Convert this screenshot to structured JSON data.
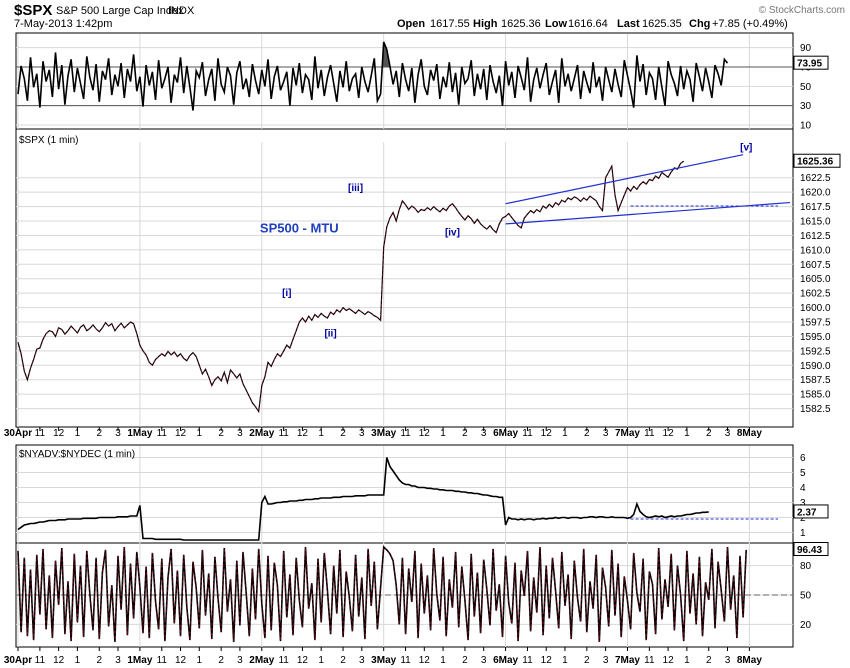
{
  "header": {
    "symbol": "$SPX",
    "name": "S&P 500 Large Cap Index",
    "exchange": "INDX",
    "date": "7-May-2013 1:42pm",
    "watermark": "© StockCharts.com",
    "open_label": "Open",
    "open": "1617.55",
    "high_label": "High",
    "high": "1625.36",
    "low_label": "Low",
    "low": "1616.64",
    "last_label": "Last",
    "last": "1625.35",
    "chg_label": "Chg",
    "chg": "+7.85 (+0.49%)"
  },
  "x_axis": {
    "labels": [
      {
        "t": "30Apr",
        "i": 0,
        "day": true
      },
      {
        "t": "11",
        "i": 7
      },
      {
        "t": "12",
        "i": 13
      },
      {
        "t": "1",
        "i": 19
      },
      {
        "t": "2",
        "i": 26
      },
      {
        "t": "3",
        "i": 32
      },
      {
        "t": "1May",
        "i": 39,
        "day": true
      },
      {
        "t": "11",
        "i": 46
      },
      {
        "t": "12",
        "i": 52
      },
      {
        "t": "1",
        "i": 58
      },
      {
        "t": "2",
        "i": 65
      },
      {
        "t": "3",
        "i": 71
      },
      {
        "t": "2May",
        "i": 78,
        "day": true
      },
      {
        "t": "11",
        "i": 85
      },
      {
        "t": "12",
        "i": 91
      },
      {
        "t": "1",
        "i": 97
      },
      {
        "t": "2",
        "i": 104
      },
      {
        "t": "3",
        "i": 110
      },
      {
        "t": "3May",
        "i": 117,
        "day": true
      },
      {
        "t": "11",
        "i": 124
      },
      {
        "t": "12",
        "i": 130
      },
      {
        "t": "1",
        "i": 136
      },
      {
        "t": "2",
        "i": 143
      },
      {
        "t": "3",
        "i": 149
      },
      {
        "t": "6May",
        "i": 156,
        "day": true
      },
      {
        "t": "11",
        "i": 163
      },
      {
        "t": "12",
        "i": 169
      },
      {
        "t": "1",
        "i": 175
      },
      {
        "t": "2",
        "i": 182
      },
      {
        "t": "3",
        "i": 188
      },
      {
        "t": "7May",
        "i": 195,
        "day": true
      },
      {
        "t": "11",
        "i": 202
      },
      {
        "t": "12",
        "i": 208
      },
      {
        "t": "1",
        "i": 214
      },
      {
        "t": "2",
        "i": 221
      },
      {
        "t": "3",
        "i": 227
      },
      {
        "t": "8May",
        "i": 234,
        "day": true
      }
    ]
  },
  "chart_data": [
    {
      "type": "line",
      "pane": "indicator-top",
      "ylim": [
        10,
        100
      ],
      "y_ticks": [
        10,
        30,
        50,
        70,
        90
      ],
      "last_value": "73.95",
      "values": [
        42,
        71,
        58,
        35,
        80,
        49,
        63,
        28,
        76,
        55,
        67,
        39,
        85,
        47,
        72,
        31,
        61,
        78,
        44,
        69,
        53,
        37,
        81,
        59,
        46,
        73,
        34,
        66,
        57,
        79,
        41,
        62,
        50,
        74,
        38,
        68,
        55,
        83,
        45,
        60,
        29,
        72,
        51,
        65,
        36,
        77,
        48,
        58,
        70,
        33,
        62,
        54,
        80,
        43,
        71,
        49,
        25,
        66,
        59,
        75,
        40,
        57,
        68,
        35,
        79,
        52,
        44,
        70,
        61,
        31,
        64,
        76,
        47,
        58,
        39,
        73,
        56,
        42,
        67,
        50,
        78,
        37,
        60,
        71,
        46,
        55,
        65,
        30,
        69,
        51,
        74,
        43,
        62,
        57,
        36,
        81,
        48,
        67,
        40,
        59,
        72,
        53,
        34,
        66,
        49,
        76,
        45,
        58,
        63,
        38,
        70,
        55,
        44,
        61,
        79,
        35,
        42,
        96,
        88,
        71,
        52,
        66,
        39,
        74,
        57,
        45,
        69,
        33,
        62,
        78,
        50,
        41,
        67,
        56,
        73,
        37,
        60,
        49,
        75,
        44,
        64,
        31,
        70,
        53,
        58,
        77,
        40,
        63,
        47,
        68,
        36,
        72,
        55,
        43,
        61,
        30,
        76,
        51,
        65,
        38,
        71,
        59,
        46,
        80,
        34,
        57,
        69,
        48,
        62,
        74,
        41,
        55,
        67,
        33,
        79,
        50,
        63,
        45,
        58,
        72,
        37,
        66,
        54,
        43,
        75,
        49,
        60,
        35,
        70,
        57,
        44,
        68,
        52,
        39,
        77,
        61,
        46,
        28,
        82,
        55,
        73,
        41,
        64,
        58,
        36,
        70,
        49,
        30,
        76,
        62,
        53,
        40,
        71,
        47,
        66,
        57,
        34,
        74,
        60,
        45,
        69,
        55,
        38,
        72,
        63,
        51,
        78,
        74
      ]
    },
    {
      "type": "line",
      "pane": "price",
      "title": "$SPX (1 min)",
      "ylim": [
        1580,
        1628
      ],
      "y_ticks": [
        1582.5,
        1585,
        1587.5,
        1590,
        1592.5,
        1595,
        1597.5,
        1600,
        1602.5,
        1605,
        1607.5,
        1610,
        1612.5,
        1615,
        1617.5,
        1620,
        1622.5
      ],
      "last_value": "1625.36",
      "values": [
        1594.0,
        1592.0,
        1589.0,
        1587.5,
        1589.5,
        1591.0,
        1592.8,
        1593.0,
        1594.5,
        1595.5,
        1596.0,
        1595.8,
        1595.0,
        1596.5,
        1596.2,
        1595.4,
        1596.0,
        1596.8,
        1596.2,
        1595.6,
        1596.6,
        1597.0,
        1596.0,
        1596.4,
        1597.0,
        1596.3,
        1595.8,
        1596.5,
        1597.4,
        1596.8,
        1597.2,
        1596.0,
        1596.7,
        1597.3,
        1596.5,
        1597.0,
        1597.5,
        1597.2,
        1595.5,
        1593.5,
        1592.5,
        1591.8,
        1590.5,
        1590.0,
        1591.0,
        1591.5,
        1592.0,
        1591.6,
        1592.4,
        1591.8,
        1592.3,
        1591.5,
        1592.0,
        1591.2,
        1590.8,
        1591.7,
        1592.2,
        1591.5,
        1590.0,
        1588.5,
        1589.3,
        1588.0,
        1586.5,
        1587.5,
        1588.0,
        1587.3,
        1588.8,
        1587.0,
        1589.2,
        1588.5,
        1587.8,
        1588.5,
        1586.8,
        1585.7,
        1584.6,
        1583.5,
        1582.8,
        1582.0,
        1586.5,
        1588.0,
        1590.5,
        1589.8,
        1591.0,
        1592.0,
        1591.5,
        1592.5,
        1593.5,
        1593.0,
        1594.5,
        1596.0,
        1597.5,
        1598.2,
        1597.5,
        1598.5,
        1597.8,
        1598.8,
        1598.3,
        1599.0,
        1598.5,
        1598.2,
        1599.2,
        1598.8,
        1599.6,
        1599.2,
        1600.0,
        1599.5,
        1599.8,
        1599.4,
        1599.0,
        1599.6,
        1599.2,
        1598.8,
        1599.3,
        1599.0,
        1598.6,
        1598.3,
        1597.8,
        1610.5,
        1614.0,
        1615.5,
        1616.5,
        1615.0,
        1617.0,
        1618.5,
        1617.8,
        1617.0,
        1617.6,
        1617.2,
        1616.5,
        1617.0,
        1616.8,
        1617.3,
        1616.9,
        1617.5,
        1617.0,
        1616.6,
        1617.2,
        1616.8,
        1617.6,
        1618.0,
        1617.3,
        1616.5,
        1615.8,
        1615.2,
        1615.9,
        1615.4,
        1614.6,
        1615.3,
        1614.5,
        1614.0,
        1613.6,
        1614.2,
        1613.5,
        1613.0,
        1614.5,
        1615.5,
        1615.8,
        1616.3,
        1615.6,
        1614.9,
        1614.2,
        1613.8,
        1615.5,
        1616.2,
        1616.8,
        1616.4,
        1617.0,
        1616.6,
        1617.6,
        1617.2,
        1617.9,
        1617.4,
        1618.2,
        1617.8,
        1618.6,
        1618.3,
        1619.0,
        1618.7,
        1619.2,
        1618.9,
        1618.4,
        1619.0,
        1618.6,
        1619.3,
        1618.9,
        1618.5,
        1617.5,
        1616.8,
        1622.5,
        1623.5,
        1624.5,
        1619.5,
        1616.8,
        1618.2,
        1619.5,
        1620.8,
        1620.2,
        1621.0,
        1620.5,
        1621.3,
        1621.8,
        1621.4,
        1622.2,
        1622.0,
        1622.8,
        1622.4,
        1623.4,
        1623.0,
        1622.6,
        1623.5,
        1624.2,
        1624.0,
        1625.0,
        1625.36
      ]
    },
    {
      "type": "line",
      "pane": "breadth",
      "title": "$NYADV:$NYDEC (1 min)",
      "ylim": [
        0.5,
        6.5
      ],
      "y_ticks": [
        1,
        2,
        3,
        4,
        5,
        6
      ],
      "last_value": "2.37",
      "values": [
        1.2,
        1.35,
        1.5,
        1.55,
        1.6,
        1.6,
        1.65,
        1.7,
        1.7,
        1.75,
        1.8,
        1.8,
        1.8,
        1.85,
        1.85,
        1.85,
        1.9,
        1.9,
        1.9,
        1.9,
        1.9,
        1.95,
        1.95,
        1.95,
        1.95,
        1.95,
        2.0,
        2.0,
        2.0,
        2.0,
        2.0,
        2.0,
        2.05,
        2.05,
        2.05,
        2.05,
        2.1,
        2.1,
        2.1,
        2.8,
        0.6,
        0.6,
        0.6,
        0.6,
        0.55,
        0.55,
        0.55,
        0.55,
        0.55,
        0.55,
        0.55,
        0.55,
        0.55,
        0.5,
        0.5,
        0.5,
        0.5,
        0.5,
        0.5,
        0.5,
        0.5,
        0.5,
        0.5,
        0.5,
        0.5,
        0.5,
        0.5,
        0.5,
        0.5,
        0.5,
        0.5,
        0.5,
        0.5,
        0.5,
        0.5,
        0.5,
        0.5,
        0.5,
        3.0,
        3.4,
        2.9,
        2.9,
        2.95,
        3.0,
        3.0,
        3.05,
        3.05,
        3.1,
        3.1,
        3.1,
        3.15,
        3.15,
        3.2,
        3.2,
        3.2,
        3.25,
        3.25,
        3.3,
        3.3,
        3.3,
        3.3,
        3.35,
        3.35,
        3.35,
        3.4,
        3.4,
        3.4,
        3.4,
        3.45,
        3.45,
        3.45,
        3.45,
        3.5,
        3.5,
        3.5,
        3.5,
        3.5,
        3.5,
        6.0,
        5.4,
        5.1,
        4.8,
        4.5,
        4.3,
        4.2,
        4.2,
        4.1,
        4.1,
        4.0,
        4.0,
        4.0,
        3.95,
        3.95,
        3.9,
        3.9,
        3.85,
        3.85,
        3.8,
        3.8,
        3.8,
        3.75,
        3.75,
        3.7,
        3.7,
        3.65,
        3.65,
        3.6,
        3.6,
        3.55,
        3.5,
        3.5,
        3.45,
        3.4,
        3.4,
        3.35,
        3.35,
        1.5,
        2.0,
        1.9,
        1.9,
        1.85,
        1.9,
        1.85,
        1.9,
        1.9,
        1.85,
        1.9,
        1.9,
        1.95,
        1.9,
        1.95,
        1.95,
        2.0,
        1.95,
        2.0,
        2.0,
        1.95,
        2.0,
        2.0,
        2.0,
        1.95,
        2.0,
        2.0,
        2.05,
        2.05,
        2.0,
        2.05,
        2.05,
        2.0,
        2.0,
        2.05,
        2.0,
        2.0,
        2.0,
        2.0,
        1.95,
        2.0,
        2.2,
        2.9,
        2.4,
        2.2,
        2.05,
        2.0,
        2.05,
        2.1,
        2.05,
        2.1,
        2.0,
        2.05,
        2.1,
        2.05,
        2.1,
        2.1,
        2.15,
        2.2,
        2.2,
        2.25,
        2.3,
        2.3,
        2.35,
        2.35,
        2.37
      ]
    },
    {
      "type": "line",
      "pane": "indicator-bottom",
      "ylim": [
        0,
        100
      ],
      "y_ticks": [
        20,
        50,
        80
      ],
      "last_value": "96.43",
      "values": [
        95,
        12,
        88,
        8,
        76,
        4,
        91,
        30,
        97,
        15,
        70,
        6,
        85,
        40,
        98,
        10,
        64,
        3,
        92,
        22,
        80,
        7,
        95,
        50,
        14,
        88,
        5,
        73,
        96,
        18,
        60,
        2,
        90,
        35,
        99,
        9,
        82,
        26,
        94,
        58,
        11,
        79,
        6,
        93,
        44,
        15,
        87,
        3,
        68,
        97,
        21,
        75,
        8,
        91,
        38,
        4,
        84,
        57,
        16,
        96,
        29,
        72,
        5,
        89,
        47,
        12,
        98,
        33,
        66,
        2,
        85,
        19,
        94,
        52,
        8,
        77,
        25,
        97,
        41,
        6,
        90,
        14,
        83,
        60,
        3,
        95,
        27,
        71,
        9,
        88,
        45,
        17,
        99,
        36,
        62,
        4,
        87,
        22,
        93,
        55,
        10,
        80,
        31,
        96,
        7,
        74,
        48,
        13,
        91,
        28,
        68,
        5,
        97,
        39,
        84,
        15,
        58,
        99,
        96,
        92,
        85,
        60,
        20,
        88,
        10,
        77,
        43,
        95,
        6,
        82,
        31,
        70,
        14,
        98,
        51,
        24,
        89,
        8,
        66,
        37,
        94,
        17,
        79,
        45,
        4,
        92,
        28,
        73,
        11,
        86,
        56,
        19,
        97,
        34,
        61,
        7,
        90,
        42,
        21,
        83,
        3,
        75,
        49,
        95,
        13,
        68,
        32,
        99,
        9,
        80,
        26,
        88,
        54,
        16,
        94,
        39,
        71,
        5,
        85,
        47,
        23,
        97,
        12,
        64,
        36,
        91,
        2,
        78,
        58,
        18,
        96,
        29,
        82,
        7,
        69,
        44,
        15,
        93,
        52,
        33,
        87,
        4,
        74,
        61,
        10,
        98,
        25,
        66,
        38,
        92,
        14,
        80,
        50,
        3,
        95,
        31,
        72,
        20,
        89,
        8,
        63,
        45,
        97,
        16,
        84,
        55,
        23,
        99,
        35,
        70,
        6,
        90,
        27,
        96
      ]
    }
  ],
  "price_bars": {
    "from": 118,
    "to": 120
  },
  "wave_labels": [
    {
      "text": "[i]",
      "i": 86,
      "v": 1602.0
    },
    {
      "text": "[ii]",
      "i": 100,
      "v": 1595.0
    },
    {
      "text": "[iii]",
      "i": 108,
      "v": 1620.2
    },
    {
      "text": "[iv]",
      "i": 139,
      "v": 1612.5
    },
    {
      "text": "[v]",
      "i": 233,
      "v": 1627.2
    }
  ],
  "annotation": {
    "text": "SP500 - MTU",
    "i": 90,
    "v": 1613.0
  },
  "trendlines": {
    "upper": {
      "i0": 156,
      "v0": 1618.0,
      "i1": 232,
      "v1": 1626.5
    },
    "lower": {
      "i0": 156,
      "v0": 1614.5,
      "i1": 247,
      "v1": 1618.2
    },
    "dashed_level": {
      "i0": 196,
      "v": 1617.6
    }
  },
  "breadth_dashed": {
    "i0": 196,
    "v": 1.9
  },
  "colors": {
    "price_line": "#000000",
    "price_accent": "#b00020",
    "trendline": "#1f2fd0",
    "wave_label": "#0000a0",
    "annotation": "#1f3fbf",
    "grid": "#d8d8d8",
    "overbought_fill": "#555555"
  }
}
